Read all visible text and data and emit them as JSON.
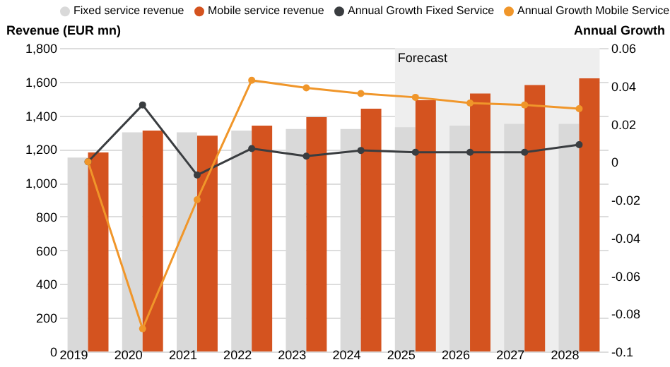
{
  "chart_data": {
    "type": "bar",
    "categories": [
      "2019",
      "2020",
      "2021",
      "2022",
      "2023",
      "2024",
      "2025",
      "2026",
      "2027",
      "2028"
    ],
    "ylabel": "Revenue (EUR mn)",
    "y2label": "Annual Growth",
    "ylim": [
      0,
      1800
    ],
    "yticks": [
      0,
      200,
      400,
      600,
      800,
      {
        "value": 1000,
        "label": "1,000"
      },
      {
        "value": 1200,
        "label": "1,200"
      },
      {
        "value": 1400,
        "label": "1,400"
      },
      {
        "value": 1600,
        "label": "1,600"
      },
      {
        "value": 1800,
        "label": "1,800"
      }
    ],
    "y2lim": [
      -0.1,
      0.06
    ],
    "y2ticks": [
      -0.1,
      -0.08,
      -0.06,
      -0.04,
      -0.02,
      0,
      0.02,
      0.04,
      0.06
    ],
    "series": [
      {
        "name": "Fixed service revenue",
        "color": "#d9d9d9",
        "values": [
          1150,
          1300,
          1300,
          1310,
          1320,
          1320,
          1330,
          1340,
          1350,
          1350
        ]
      },
      {
        "name": "Mobile service revenue",
        "color": "#d4531f",
        "values": [
          1180,
          1310,
          1280,
          1340,
          1390,
          1440,
          1490,
          1530,
          1580,
          1620
        ]
      },
      {
        "name": "Annual Growth Fixed Service",
        "type": "line",
        "axis": "y2",
        "color": "#3a3d40",
        "values": [
          0.0,
          0.03,
          -0.007,
          0.007,
          0.003,
          0.006,
          0.005,
          0.005,
          0.005,
          0.009
        ]
      },
      {
        "name": "Annual Growth Mobile Service",
        "type": "line",
        "axis": "y2",
        "color": "#f0962a",
        "values": [
          0.0,
          -0.088,
          -0.02,
          0.043,
          0.039,
          0.036,
          0.034,
          0.031,
          0.03,
          0.028
        ]
      }
    ],
    "bands": [
      {
        "axis": "x",
        "from": "2025",
        "to": "2028",
        "label": "Forecast",
        "color": "#eeeeee"
      }
    ],
    "marker": "circle",
    "grid": "y",
    "legend": "top"
  }
}
